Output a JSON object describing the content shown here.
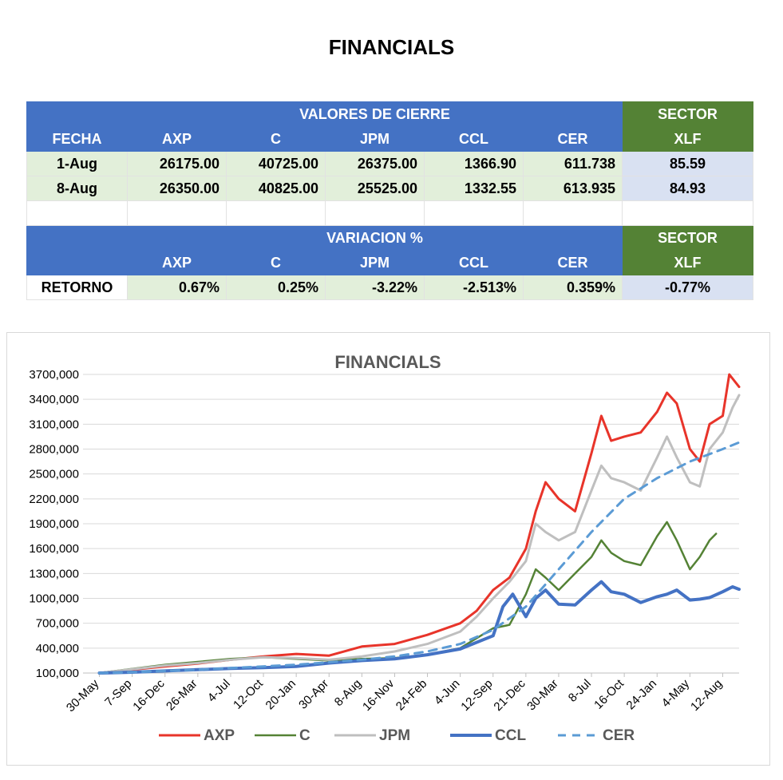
{
  "title": "FINANCIALS",
  "table_top": {
    "group_header": "VALORES DE CIERRE",
    "sector_header": "SECTOR",
    "columns": [
      "FECHA",
      "AXP",
      "C",
      "JPM",
      "CCL",
      "CER",
      "XLF"
    ],
    "rows": [
      [
        "1-Aug",
        "26175.00",
        "40725.00",
        "26375.00",
        "1366.90",
        "611.738",
        "85.59"
      ],
      [
        "8-Aug",
        "26350.00",
        "40825.00",
        "25525.00",
        "1332.55",
        "613.935",
        "84.93"
      ]
    ]
  },
  "table_bottom": {
    "group_header": "VARIACION %",
    "sector_header": "SECTOR",
    "columns": [
      "",
      "AXP",
      "C",
      "JPM",
      "CCL",
      "CER",
      "XLF"
    ],
    "rows": [
      [
        "RETORNO",
        "0.67%",
        "0.25%",
        "-3.22%",
        "-2.513%",
        "0.359%",
        "-0.77%"
      ]
    ]
  },
  "chart_data": {
    "type": "line",
    "title": "FINANCIALS",
    "xlabel": "",
    "ylabel": "",
    "x_ticks": [
      "30-May",
      "7-Sep",
      "16-Dec",
      "26-Mar",
      "4-Jul",
      "12-Oct",
      "20-Jan",
      "30-Apr",
      "8-Aug",
      "16-Nov",
      "24-Feb",
      "4-Jun",
      "12-Sep",
      "21-Dec",
      "30-Mar",
      "8-Jul",
      "16-Oct",
      "24-Jan",
      "4-May",
      "12-Aug"
    ],
    "y_ticks": [
      "100,000",
      "400,000",
      "700,000",
      "1000,000",
      "1300,000",
      "1600,000",
      "1900,000",
      "2200,000",
      "2500,000",
      "2800,000",
      "3100,000",
      "3400,000",
      "3700,000"
    ],
    "ylim": [
      100000,
      3700000
    ],
    "grid": true,
    "legend": "bottom",
    "series": [
      {
        "name": "AXP",
        "color": "#e8342a",
        "dash": "solid",
        "width": 3,
        "points": [
          [
            0,
            100000
          ],
          [
            1,
            140000
          ],
          [
            2,
            180000
          ],
          [
            3,
            215000
          ],
          [
            4,
            260000
          ],
          [
            5,
            300000
          ],
          [
            6,
            330000
          ],
          [
            7,
            310000
          ],
          [
            8,
            420000
          ],
          [
            9,
            450000
          ],
          [
            10,
            560000
          ],
          [
            11,
            700000
          ],
          [
            11.5,
            850000
          ],
          [
            12,
            1100000
          ],
          [
            12.5,
            1250000
          ],
          [
            13,
            1600000
          ],
          [
            13.3,
            2050000
          ],
          [
            13.6,
            2400000
          ],
          [
            14,
            2200000
          ],
          [
            14.5,
            2050000
          ],
          [
            15,
            2750000
          ],
          [
            15.3,
            3200000
          ],
          [
            15.6,
            2900000
          ],
          [
            16,
            2950000
          ],
          [
            16.5,
            3000000
          ],
          [
            17,
            3250000
          ],
          [
            17.3,
            3480000
          ],
          [
            17.6,
            3350000
          ],
          [
            18,
            2800000
          ],
          [
            18.3,
            2650000
          ],
          [
            18.6,
            3100000
          ],
          [
            19,
            3200000
          ],
          [
            19.2,
            3700000
          ],
          [
            19.5,
            3550000
          ]
        ]
      },
      {
        "name": "C",
        "color": "#548235",
        "dash": "solid",
        "width": 2.5,
        "points": [
          [
            0,
            100000
          ],
          [
            1,
            150000
          ],
          [
            2,
            200000
          ],
          [
            3,
            235000
          ],
          [
            4,
            270000
          ],
          [
            5,
            290000
          ],
          [
            6,
            270000
          ],
          [
            7,
            250000
          ],
          [
            8,
            270000
          ],
          [
            9,
            280000
          ],
          [
            10,
            320000
          ],
          [
            11,
            400000
          ],
          [
            12,
            640000
          ],
          [
            12.5,
            680000
          ],
          [
            13,
            1050000
          ],
          [
            13.3,
            1350000
          ],
          [
            13.6,
            1250000
          ],
          [
            14,
            1100000
          ],
          [
            14.5,
            1300000
          ],
          [
            15,
            1500000
          ],
          [
            15.3,
            1700000
          ],
          [
            15.6,
            1550000
          ],
          [
            16,
            1450000
          ],
          [
            16.5,
            1400000
          ],
          [
            17,
            1750000
          ],
          [
            17.3,
            1920000
          ],
          [
            17.6,
            1700000
          ],
          [
            18,
            1350000
          ],
          [
            18.3,
            1500000
          ],
          [
            18.6,
            1700000
          ],
          [
            18.8,
            1780000
          ]
        ]
      },
      {
        "name": "JPM",
        "color": "#bfbfbf",
        "dash": "solid",
        "width": 3,
        "points": [
          [
            0,
            100000
          ],
          [
            1,
            145000
          ],
          [
            2,
            190000
          ],
          [
            3,
            220000
          ],
          [
            4,
            260000
          ],
          [
            5,
            290000
          ],
          [
            6,
            280000
          ],
          [
            7,
            260000
          ],
          [
            8,
            300000
          ],
          [
            9,
            360000
          ],
          [
            10,
            450000
          ],
          [
            11,
            600000
          ],
          [
            11.5,
            780000
          ],
          [
            12,
            1000000
          ],
          [
            12.5,
            1200000
          ],
          [
            13,
            1450000
          ],
          [
            13.3,
            1900000
          ],
          [
            13.6,
            1800000
          ],
          [
            14,
            1700000
          ],
          [
            14.5,
            1800000
          ],
          [
            15,
            2300000
          ],
          [
            15.3,
            2600000
          ],
          [
            15.6,
            2450000
          ],
          [
            16,
            2400000
          ],
          [
            16.5,
            2300000
          ],
          [
            17,
            2700000
          ],
          [
            17.3,
            2950000
          ],
          [
            17.6,
            2700000
          ],
          [
            18,
            2400000
          ],
          [
            18.3,
            2350000
          ],
          [
            18.6,
            2800000
          ],
          [
            19,
            3000000
          ],
          [
            19.3,
            3300000
          ],
          [
            19.5,
            3450000
          ]
        ]
      },
      {
        "name": "CCL",
        "color": "#4472c4",
        "dash": "solid",
        "width": 4,
        "points": [
          [
            0,
            100000
          ],
          [
            1,
            110000
          ],
          [
            2,
            125000
          ],
          [
            3,
            140000
          ],
          [
            4,
            155000
          ],
          [
            5,
            165000
          ],
          [
            6,
            180000
          ],
          [
            7,
            220000
          ],
          [
            8,
            250000
          ],
          [
            9,
            270000
          ],
          [
            10,
            320000
          ],
          [
            11,
            390000
          ],
          [
            12,
            550000
          ],
          [
            12.3,
            900000
          ],
          [
            12.6,
            1050000
          ],
          [
            13,
            780000
          ],
          [
            13.3,
            1000000
          ],
          [
            13.6,
            1100000
          ],
          [
            14,
            930000
          ],
          [
            14.5,
            920000
          ],
          [
            15,
            1100000
          ],
          [
            15.3,
            1200000
          ],
          [
            15.6,
            1080000
          ],
          [
            16,
            1050000
          ],
          [
            16.5,
            950000
          ],
          [
            17,
            1020000
          ],
          [
            17.3,
            1050000
          ],
          [
            17.6,
            1100000
          ],
          [
            18,
            980000
          ],
          [
            18.3,
            990000
          ],
          [
            18.6,
            1010000
          ],
          [
            19,
            1080000
          ],
          [
            19.3,
            1140000
          ],
          [
            19.5,
            1110000
          ]
        ]
      },
      {
        "name": "CER",
        "color": "#5b9bd5",
        "dash": "10,8",
        "width": 3,
        "points": [
          [
            0,
            100000
          ],
          [
            1,
            110000
          ],
          [
            2,
            125000
          ],
          [
            3,
            140000
          ],
          [
            4,
            160000
          ],
          [
            5,
            180000
          ],
          [
            6,
            200000
          ],
          [
            7,
            230000
          ],
          [
            8,
            260000
          ],
          [
            9,
            300000
          ],
          [
            10,
            360000
          ],
          [
            11,
            450000
          ],
          [
            12,
            620000
          ],
          [
            13,
            900000
          ],
          [
            14,
            1350000
          ],
          [
            15,
            1800000
          ],
          [
            16,
            2200000
          ],
          [
            17,
            2450000
          ],
          [
            18,
            2650000
          ],
          [
            19,
            2800000
          ],
          [
            19.5,
            2880000
          ]
        ]
      }
    ]
  }
}
